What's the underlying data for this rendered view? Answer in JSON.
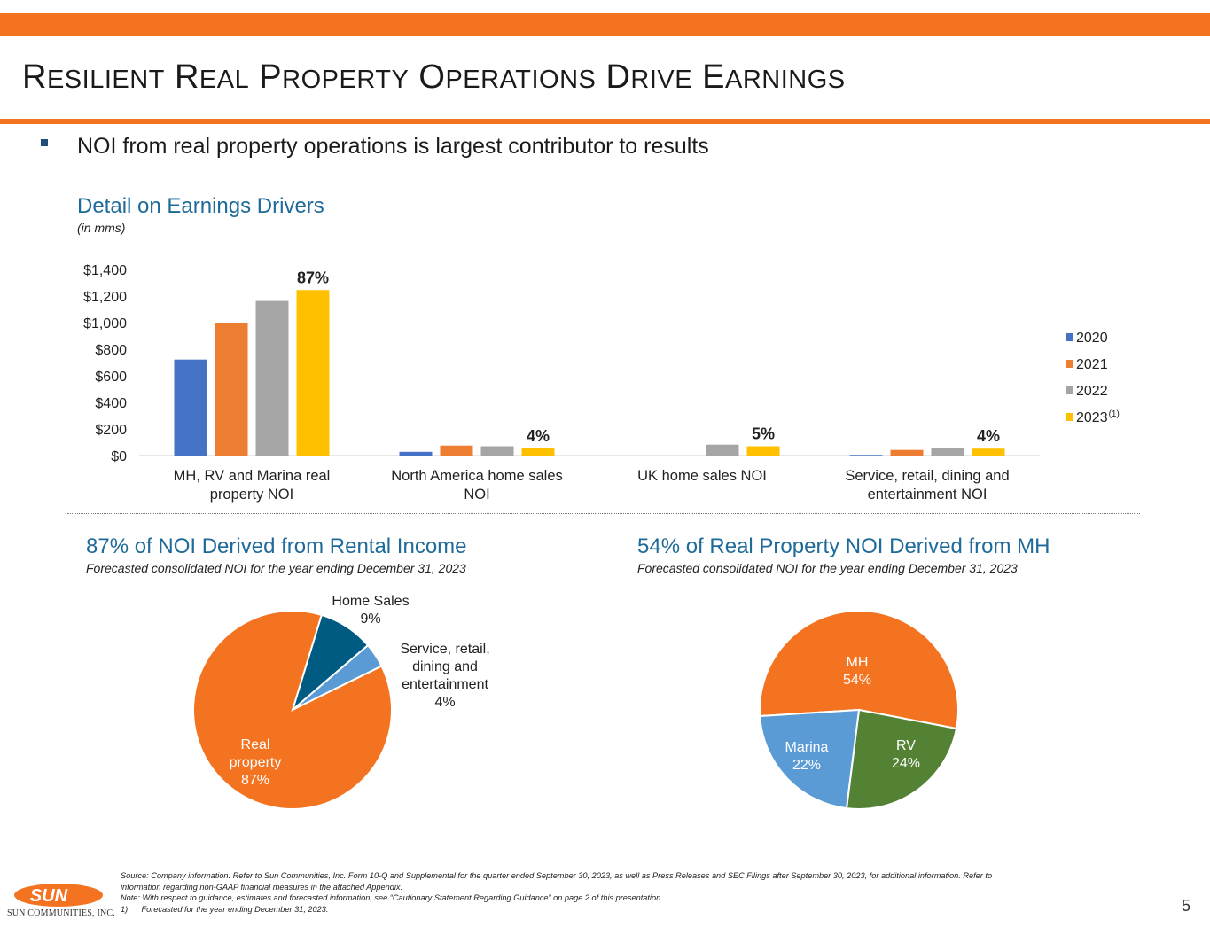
{
  "header": {
    "title_words": [
      {
        "cap": "R",
        "rest": "ESILIENT"
      },
      {
        "cap": "R",
        "rest": "EAL"
      },
      {
        "cap": "P",
        "rest": "ROPERTY"
      },
      {
        "cap": "O",
        "rest": "PERATIONS"
      },
      {
        "cap": "D",
        "rest": "RIVE"
      },
      {
        "cap": "E",
        "rest": "ARNINGS"
      }
    ]
  },
  "bullet": "NOI from real property operations is largest contributor to results",
  "colors": {
    "accent": "#f47321",
    "section_title": "#1e6a99",
    "bullet": "#1f4e79",
    "series": [
      "#4472c4",
      "#ed7d31",
      "#a5a5a5",
      "#ffc000"
    ],
    "pie_real_property": "#f47321",
    "pie_home_sales": "#005b82",
    "pie_service": "#5b9bd5",
    "pie_mh": "#f47321",
    "pie_rv": "#548235",
    "pie_marina": "#5b9bd5"
  },
  "chart_data": [
    {
      "type": "bar",
      "title": "Detail on Earnings Drivers",
      "subtitle": "(in mms)",
      "categories": [
        [
          "MH, RV and Marina real",
          "property NOI"
        ],
        [
          "North America home sales",
          "NOI"
        ],
        [
          "UK home sales NOI"
        ],
        [
          "Service, retail, dining and",
          "entertainment NOI"
        ]
      ],
      "series": [
        {
          "name": "2020",
          "values": [
            722,
            28,
            0,
            5
          ]
        },
        {
          "name": "2021",
          "values": [
            1000,
            75,
            0,
            42
          ]
        },
        {
          "name": "2022",
          "values": [
            1163,
            70,
            82,
            57
          ]
        },
        {
          "name": "2023",
          "name_suffix": "(1)",
          "values": [
            1245,
            55,
            70,
            52
          ]
        }
      ],
      "data_labels": [
        "87%",
        "4%",
        "5%",
        "4%"
      ],
      "yticks": [
        "$0",
        "$200",
        "$400",
        "$600",
        "$800",
        "$1,000",
        "$1,200",
        "$1,400"
      ],
      "ylim": [
        0,
        1400
      ],
      "grid": false,
      "legend": "right"
    },
    {
      "type": "pie",
      "title": "87% of NOI Derived from Rental Income",
      "subtitle": "Forecasted consolidated NOI for the year ending December 31, 2023",
      "slices": [
        {
          "label": [
            "Real",
            "property",
            "87%"
          ],
          "value": 87
        },
        {
          "label": [
            "Home Sales",
            "9%"
          ],
          "value": 9
        },
        {
          "label": [
            "Service, retail,",
            "dining and",
            "entertainment",
            "4%"
          ],
          "value": 4
        }
      ]
    },
    {
      "type": "pie",
      "title": "54% of Real Property NOI Derived from MH",
      "subtitle": "Forecasted consolidated NOI for the year ending December 31, 2023",
      "slices": [
        {
          "label": [
            "MH",
            "54%"
          ],
          "value": 54
        },
        {
          "label": [
            "RV",
            "24%"
          ],
          "value": 24
        },
        {
          "label": [
            "Marina",
            "22%"
          ],
          "value": 22
        }
      ]
    }
  ],
  "footnote": [
    "Source: Company information. Refer to Sun Communities, Inc. Form 10-Q and Supplemental for the quarter ended September 30, 2023, as well as Press Releases and SEC Filings after September 30, 2023, for additional information. Refer to",
    "information regarding non-GAAP financial measures in the attached Appendix.",
    "Note: With respect to guidance, estimates and forecasted information, see “Cautionary Statement Regarding Guidance” on page 2 of this presentation.",
    "1)      Forecasted for the year ending December 31, 2023."
  ],
  "logo": {
    "text": "SUN",
    "caption": "SUN COMMUNITIES, INC."
  },
  "page_number": "5"
}
